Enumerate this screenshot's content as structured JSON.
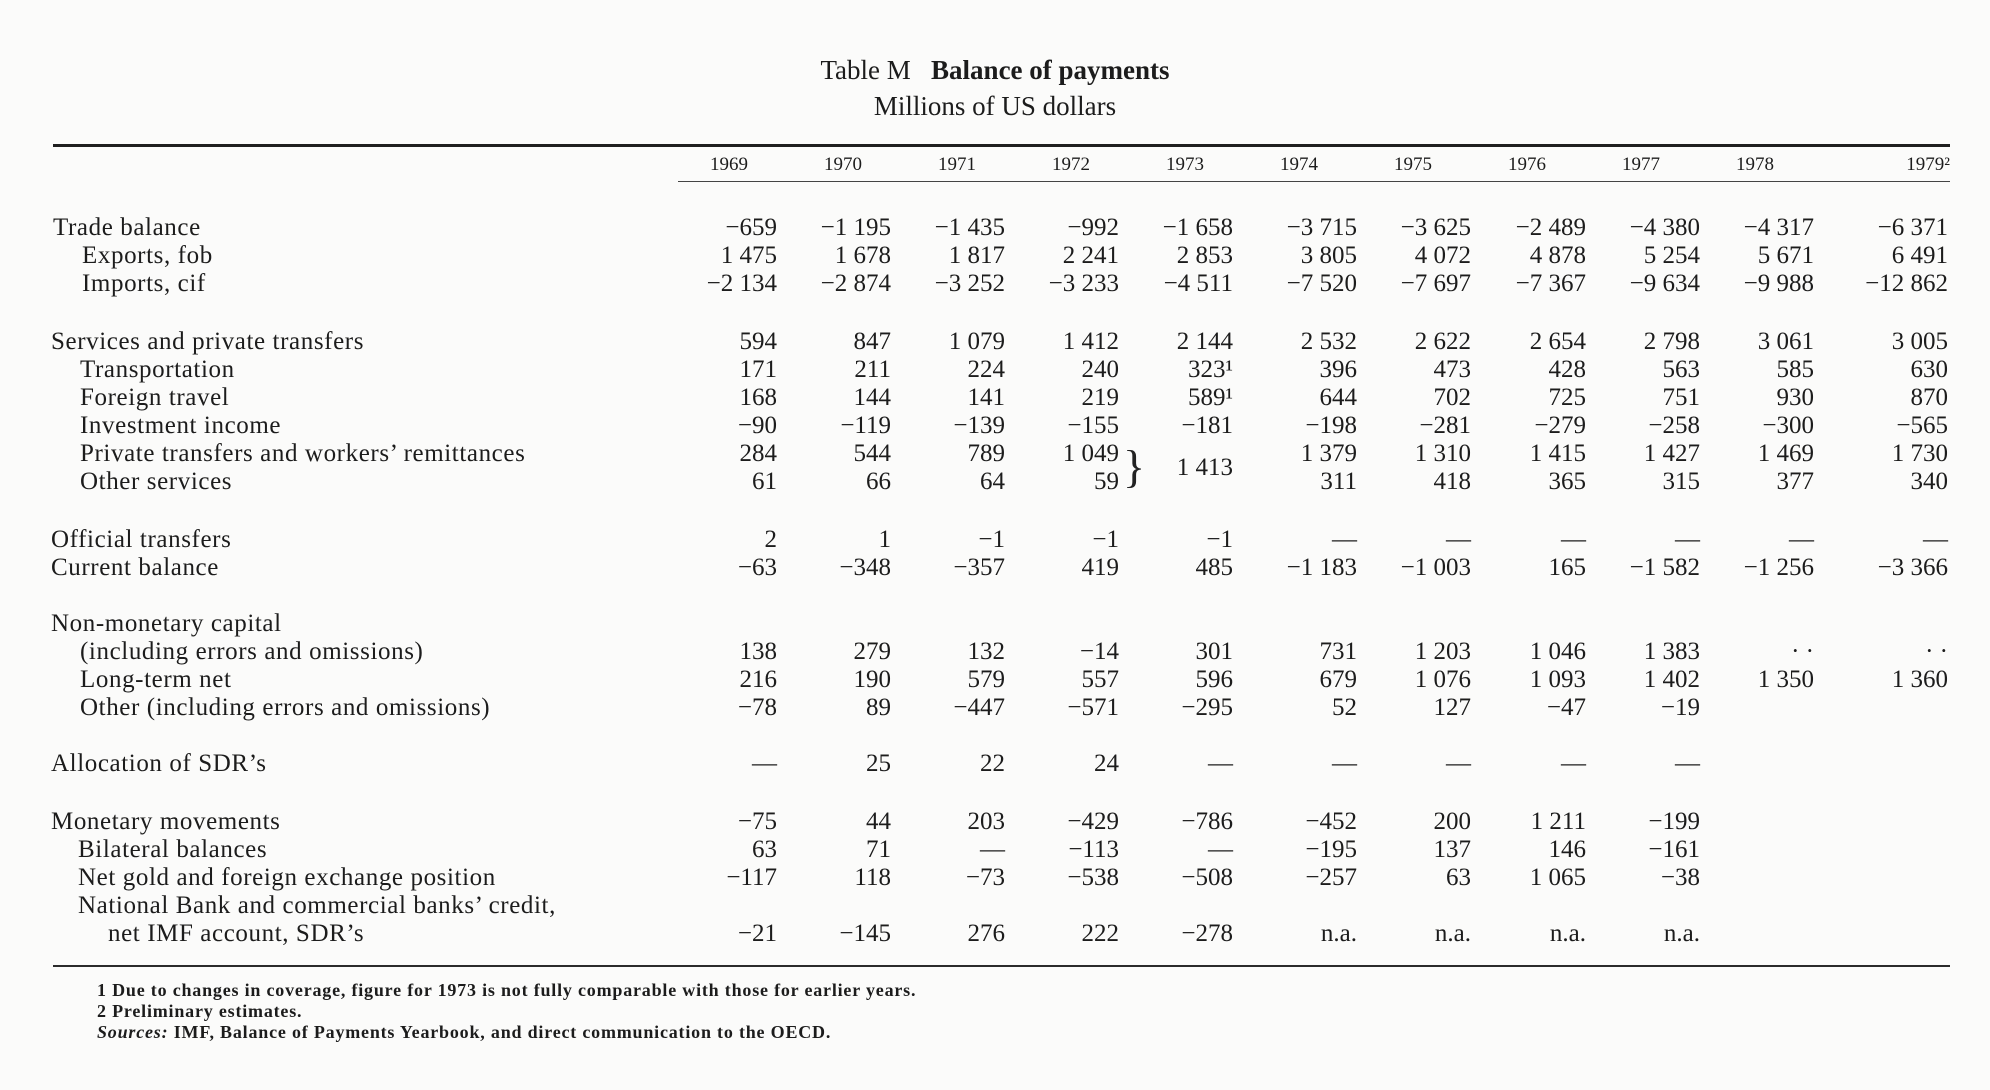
{
  "title": {
    "prefix": "Table M",
    "name": "Balance of payments",
    "subtitle": "Millions of US dollars"
  },
  "years": [
    "1969",
    "1970",
    "1971",
    "1972",
    "1973",
    "1974",
    "1975",
    "1976",
    "1977",
    "1978",
    "1979²"
  ],
  "rows": {
    "trade_balance": {
      "label": "Trade balance",
      "values": [
        "−659",
        "−1 195",
        "−1 435",
        "−992",
        "−1 658",
        "−3 715",
        "−3 625",
        "−2 489",
        "−4 380",
        "−4 317",
        "−6 371"
      ]
    },
    "exports": {
      "label": "Exports, fob",
      "values": [
        "1 475",
        "1 678",
        "1 817",
        "2 241",
        "2 853",
        "3 805",
        "4 072",
        "4 878",
        "5 254",
        "5 671",
        "6 491"
      ]
    },
    "imports": {
      "label": "Imports, cif",
      "values": [
        "−2 134",
        "−2 874",
        "−3 252",
        "−3 233",
        "−4 511",
        "−7 520",
        "−7 697",
        "−7 367",
        "−9 634",
        "−9 988",
        "−12 862"
      ]
    },
    "services": {
      "label": "Services and private transfers",
      "values": [
        "594",
        "847",
        "1 079",
        "1 412",
        "2 144",
        "2 532",
        "2 622",
        "2 654",
        "2 798",
        "3 061",
        "3 005"
      ]
    },
    "transportation": {
      "label": "Transportation",
      "values": [
        "171",
        "211",
        "224",
        "240",
        "323¹",
        "396",
        "473",
        "428",
        "563",
        "585",
        "630"
      ]
    },
    "foreign_travel": {
      "label": "Foreign travel",
      "values": [
        "168",
        "144",
        "141",
        "219",
        "589¹",
        "644",
        "702",
        "725",
        "751",
        "930",
        "870"
      ]
    },
    "investment_income": {
      "label": "Investment income",
      "values": [
        "−90",
        "−119",
        "−139",
        "−155",
        "−181",
        "−198",
        "−281",
        "−279",
        "−258",
        "−300",
        "−565"
      ]
    },
    "private_transfers": {
      "label": "Private transfers and workers’ remittances",
      "values": [
        "284",
        "544",
        "789",
        "1 049",
        "1 413",
        "1 379",
        "1 310",
        "1 415",
        "1 427",
        "1 469",
        "1 730"
      ]
    },
    "other_services": {
      "label": "Other services",
      "values": [
        "61",
        "66",
        "64",
        "59",
        "",
        "311",
        "418",
        "365",
        "315",
        "377",
        "340"
      ]
    },
    "official_transfers": {
      "label": "Official transfers",
      "values": [
        "2",
        "1",
        "−1",
        "−1",
        "−1",
        "—",
        "—",
        "—",
        "—",
        "—",
        "—"
      ]
    },
    "current_balance": {
      "label": "Current balance",
      "values": [
        "−63",
        "−348",
        "−357",
        "419",
        "485",
        "−1 183",
        "−1 003",
        "165",
        "−1 582",
        "−1 256",
        "−3 366"
      ]
    },
    "non_monetary": {
      "label": "Non-monetary capital"
    },
    "incl_errors": {
      "label": "(including errors and omissions)",
      "values": [
        "138",
        "279",
        "132",
        "−14",
        "301",
        "731",
        "1 203",
        "1 046",
        "1 383",
        "· ·",
        "· ·"
      ]
    },
    "long_term": {
      "label": "Long-term net",
      "values": [
        "216",
        "190",
        "579",
        "557",
        "596",
        "679",
        "1 076",
        "1 093",
        "1 402",
        "1 350",
        "1 360"
      ]
    },
    "other_incl": {
      "label": "Other (including errors and omissions)",
      "values": [
        "−78",
        "89",
        "−447",
        "−571",
        "−295",
        "52",
        "127",
        "−47",
        "−19",
        "",
        ""
      ]
    },
    "sdr_allocation": {
      "label": "Allocation of SDR’s",
      "values": [
        "—",
        "25",
        "22",
        "24",
        "—",
        "—",
        "—",
        "—",
        "—",
        "",
        ""
      ]
    },
    "monetary": {
      "label": "Monetary movements",
      "values": [
        "−75",
        "44",
        "203",
        "−429",
        "−786",
        "−452",
        "200",
        "1 211",
        "−199",
        "",
        ""
      ]
    },
    "bilateral": {
      "label": "Bilateral balances",
      "values": [
        "63",
        "71",
        "—",
        "−113",
        "—",
        "−195",
        "137",
        "146",
        "−161",
        "",
        ""
      ]
    },
    "net_gold": {
      "label": "Net gold and foreign exchange position",
      "values": [
        "−117",
        "118",
        "−73",
        "−538",
        "−508",
        "−257",
        "63",
        "1 065",
        "−38",
        "",
        ""
      ]
    },
    "national_bank": {
      "label": "National Bank and commercial banks’ credit,"
    },
    "net_imf": {
      "label": "net IMF account, SDR’s",
      "values": [
        "−21",
        "−145",
        "276",
        "222",
        "−278",
        "n.a.",
        "n.a.",
        "n.a.",
        "n.a.",
        "",
        ""
      ]
    }
  },
  "notes": {
    "note1": "1  Due to changes in coverage, figure for 1973 is not fully comparable with those for earlier years.",
    "note2": "2  Preliminary estimates.",
    "sources_label": "Sources:",
    "sources_publication": "IMF, Balance of Payments Yearbook,",
    "sources_rest": "and direct communication to the OECD."
  }
}
